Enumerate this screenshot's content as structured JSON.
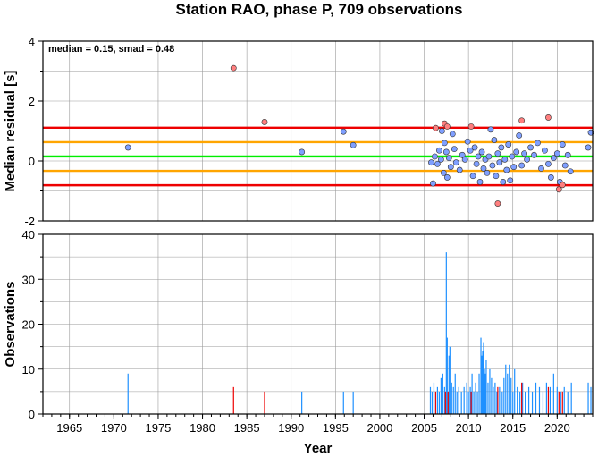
{
  "chart_data": [
    {
      "id": "residuals",
      "type": "scatter",
      "title": "Station RAO, phase P, 709 observations",
      "ylabel": "Median residual [s]",
      "xlim": [
        1962,
        2024
      ],
      "ylim": [
        -2,
        4
      ],
      "yticks": [
        -2,
        0,
        2,
        4
      ],
      "grid": true,
      "stats_text": "median = 0.15, smad = 0.48",
      "colors": {
        "accepted": "#7f9fff",
        "outlier": "#ff7f7f",
        "median_line": "#00ee00",
        "one_smad_line": "#ffa500",
        "two_smad_line": "#ee0000"
      },
      "reference_lines": [
        {
          "name": "median",
          "y": 0.15,
          "color": "#00ee00"
        },
        {
          "name": "median+smad",
          "y": 0.63,
          "color": "#ffa500"
        },
        {
          "name": "median-smad",
          "y": -0.33,
          "color": "#ffa500"
        },
        {
          "name": "median+2smad",
          "y": 1.11,
          "color": "#ee0000"
        },
        {
          "name": "median-2smad",
          "y": -0.81,
          "color": "#ee0000"
        }
      ],
      "points_accepted": [
        [
          1971.6,
          0.45
        ],
        [
          1991.2,
          0.3
        ],
        [
          1995.9,
          0.98
        ],
        [
          1997.0,
          0.53
        ],
        [
          2005.8,
          -0.05
        ],
        [
          2006.0,
          -0.75
        ],
        [
          2006.2,
          0.15
        ],
        [
          2006.5,
          -0.1
        ],
        [
          2006.7,
          0.35
        ],
        [
          2006.9,
          0.05
        ],
        [
          2007.0,
          1.0
        ],
        [
          2007.2,
          -0.4
        ],
        [
          2007.3,
          0.6
        ],
        [
          2007.5,
          0.3
        ],
        [
          2007.6,
          -0.55
        ],
        [
          2007.8,
          0.1
        ],
        [
          2008.0,
          -0.2
        ],
        [
          2008.2,
          0.9
        ],
        [
          2008.4,
          0.4
        ],
        [
          2008.6,
          -0.05
        ],
        [
          2009.0,
          -0.3
        ],
        [
          2009.3,
          0.2
        ],
        [
          2009.6,
          0.05
        ],
        [
          2009.9,
          0.65
        ],
        [
          2010.2,
          0.35
        ],
        [
          2010.5,
          -0.5
        ],
        [
          2010.7,
          0.45
        ],
        [
          2010.9,
          -0.1
        ],
        [
          2011.1,
          0.15
        ],
        [
          2011.3,
          -0.7
        ],
        [
          2011.5,
          0.3
        ],
        [
          2011.7,
          -0.25
        ],
        [
          2011.9,
          0.05
        ],
        [
          2012.1,
          -0.4
        ],
        [
          2012.3,
          0.15
        ],
        [
          2012.5,
          1.05
        ],
        [
          2012.7,
          -0.15
        ],
        [
          2012.9,
          0.7
        ],
        [
          2013.1,
          -0.5
        ],
        [
          2013.3,
          0.25
        ],
        [
          2013.5,
          -0.05
        ],
        [
          2013.7,
          0.45
        ],
        [
          2013.9,
          -0.7
        ],
        [
          2014.1,
          0.05
        ],
        [
          2014.3,
          -0.3
        ],
        [
          2014.5,
          0.55
        ],
        [
          2014.7,
          -0.65
        ],
        [
          2014.9,
          0.15
        ],
        [
          2015.1,
          -0.2
        ],
        [
          2015.4,
          0.3
        ],
        [
          2015.7,
          0.85
        ],
        [
          2016.0,
          -0.15
        ],
        [
          2016.3,
          0.25
        ],
        [
          2016.6,
          0.05
        ],
        [
          2017.0,
          0.45
        ],
        [
          2017.4,
          0.2
        ],
        [
          2017.8,
          0.6
        ],
        [
          2018.2,
          -0.25
        ],
        [
          2018.6,
          0.35
        ],
        [
          2019.0,
          -0.1
        ],
        [
          2019.3,
          -0.55
        ],
        [
          2019.6,
          0.1
        ],
        [
          2020.0,
          0.25
        ],
        [
          2020.3,
          -0.7
        ],
        [
          2020.6,
          0.55
        ],
        [
          2020.9,
          -0.15
        ],
        [
          2021.2,
          0.2
        ],
        [
          2021.5,
          -0.35
        ],
        [
          2023.5,
          0.45
        ],
        [
          2023.8,
          0.95
        ]
      ],
      "points_outlier": [
        [
          1983.5,
          3.1
        ],
        [
          1987.0,
          1.3
        ],
        [
          2006.3,
          1.1
        ],
        [
          2007.3,
          1.25
        ],
        [
          2007.6,
          1.15
        ],
        [
          2010.3,
          1.15
        ],
        [
          2013.3,
          -1.42
        ],
        [
          2016.0,
          1.35
        ],
        [
          2019.0,
          1.45
        ],
        [
          2020.2,
          -0.95
        ],
        [
          2020.6,
          -0.8
        ]
      ]
    },
    {
      "id": "observations",
      "type": "bar",
      "ylabel": "Observations",
      "xlabel": "Year",
      "xlim": [
        1962,
        2024
      ],
      "ylim": [
        0,
        40
      ],
      "xticks": [
        1965,
        1970,
        1975,
        1980,
        1985,
        1990,
        1995,
        2000,
        2005,
        2010,
        2015,
        2020
      ],
      "yticks": [
        0,
        10,
        20,
        30,
        40
      ],
      "grid": true,
      "colors": {
        "accepted": "#1e90ff",
        "outlier": "#ee0000"
      },
      "bars_accepted": [
        [
          1971.6,
          9
        ],
        [
          1991.2,
          5
        ],
        [
          1995.9,
          5
        ],
        [
          1997.0,
          5
        ],
        [
          2005.7,
          6
        ],
        [
          2005.9,
          5
        ],
        [
          2006.1,
          7
        ],
        [
          2006.3,
          5
        ],
        [
          2006.5,
          6
        ],
        [
          2006.7,
          5
        ],
        [
          2006.9,
          8
        ],
        [
          2007.1,
          9
        ],
        [
          2007.3,
          6
        ],
        [
          2007.5,
          36
        ],
        [
          2007.6,
          17
        ],
        [
          2007.8,
          13
        ],
        [
          2007.9,
          15
        ],
        [
          2008.1,
          7
        ],
        [
          2008.3,
          6
        ],
        [
          2008.5,
          9
        ],
        [
          2008.7,
          5
        ],
        [
          2008.9,
          6
        ],
        [
          2009.2,
          5
        ],
        [
          2009.5,
          6
        ],
        [
          2009.8,
          7
        ],
        [
          2010.0,
          5
        ],
        [
          2010.2,
          6
        ],
        [
          2010.4,
          9
        ],
        [
          2010.6,
          5
        ],
        [
          2010.8,
          7
        ],
        [
          2011.0,
          5
        ],
        [
          2011.2,
          9
        ],
        [
          2011.4,
          17
        ],
        [
          2011.5,
          13
        ],
        [
          2011.6,
          14
        ],
        [
          2011.7,
          16
        ],
        [
          2011.8,
          10
        ],
        [
          2011.9,
          9
        ],
        [
          2012.0,
          12
        ],
        [
          2012.2,
          7
        ],
        [
          2012.4,
          10
        ],
        [
          2012.6,
          8
        ],
        [
          2012.8,
          6
        ],
        [
          2013.0,
          7
        ],
        [
          2013.2,
          5
        ],
        [
          2013.5,
          6
        ],
        [
          2013.8,
          5
        ],
        [
          2014.0,
          8
        ],
        [
          2014.2,
          11
        ],
        [
          2014.4,
          9
        ],
        [
          2014.6,
          11
        ],
        [
          2014.8,
          8
        ],
        [
          2015.0,
          5
        ],
        [
          2015.2,
          10
        ],
        [
          2015.5,
          6
        ],
        [
          2015.8,
          5
        ],
        [
          2016.1,
          7
        ],
        [
          2016.4,
          5
        ],
        [
          2016.8,
          6
        ],
        [
          2017.2,
          5
        ],
        [
          2017.6,
          7
        ],
        [
          2018.0,
          6
        ],
        [
          2018.4,
          5
        ],
        [
          2018.8,
          7
        ],
        [
          2019.2,
          6
        ],
        [
          2019.6,
          9
        ],
        [
          2020.0,
          6
        ],
        [
          2020.4,
          5
        ],
        [
          2020.8,
          6
        ],
        [
          2021.2,
          5
        ],
        [
          2021.6,
          7
        ],
        [
          2023.5,
          7
        ],
        [
          2023.8,
          6
        ]
      ],
      "bars_outlier": [
        [
          1983.5,
          6
        ],
        [
          1987.0,
          5
        ],
        [
          2006.3,
          5
        ],
        [
          2007.4,
          5
        ],
        [
          2007.7,
          5
        ],
        [
          2010.3,
          5
        ],
        [
          2013.3,
          6
        ],
        [
          2016.0,
          7
        ],
        [
          2019.0,
          6
        ],
        [
          2020.2,
          5
        ],
        [
          2020.6,
          5
        ]
      ]
    }
  ]
}
